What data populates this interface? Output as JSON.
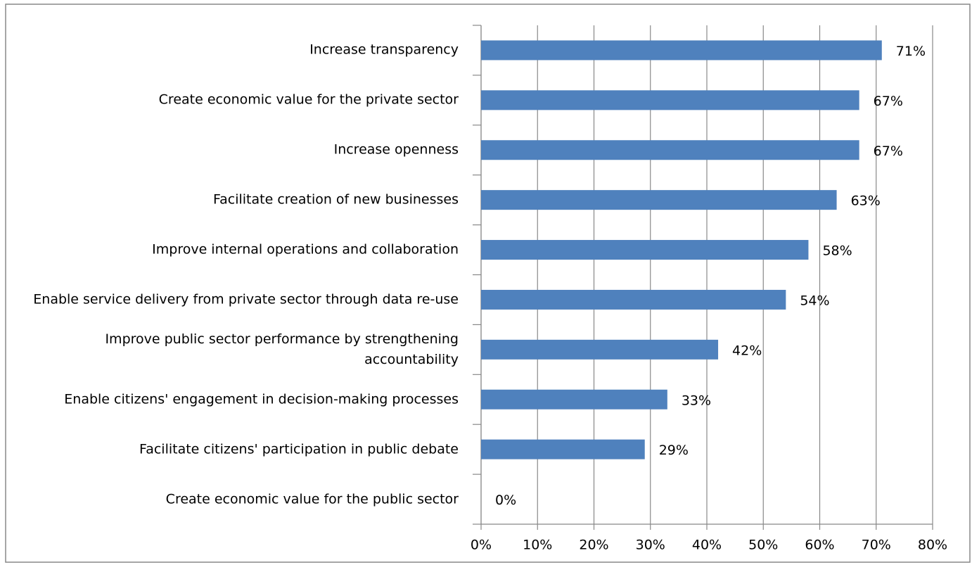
{
  "chart_data": {
    "type": "barh",
    "categories": [
      "Increase transparency",
      "Create economic value for the private sector",
      "Increase openness",
      "Facilitate creation of new businesses",
      "Improve internal operations and collaboration",
      "Enable service delivery from private sector through data re-use",
      "Improve public sector performance by strengthening accountability",
      "Enable citizens' engagement in decision-making processes",
      "Facilitate citizens' participation in public debate",
      "Create economic value for the public sector"
    ],
    "values": [
      71,
      67,
      67,
      63,
      58,
      54,
      42,
      33,
      29,
      0
    ],
    "value_labels": [
      "71%",
      "67%",
      "67%",
      "63%",
      "58%",
      "54%",
      "42%",
      "33%",
      "29%",
      "0%"
    ],
    "color": "#4f81bd",
    "xlim": [
      0,
      80
    ],
    "xticks": [
      {
        "value": 0,
        "label": "0%"
      },
      {
        "value": 10,
        "label": "10%"
      },
      {
        "value": 20,
        "label": "20%"
      },
      {
        "value": 30,
        "label": "30%"
      },
      {
        "value": 40,
        "label": "40%"
      },
      {
        "value": 50,
        "label": "50%"
      },
      {
        "value": 60,
        "label": "60%"
      },
      {
        "value": 70,
        "label": "70%"
      },
      {
        "value": 80,
        "label": "80%"
      }
    ],
    "grid": true
  }
}
